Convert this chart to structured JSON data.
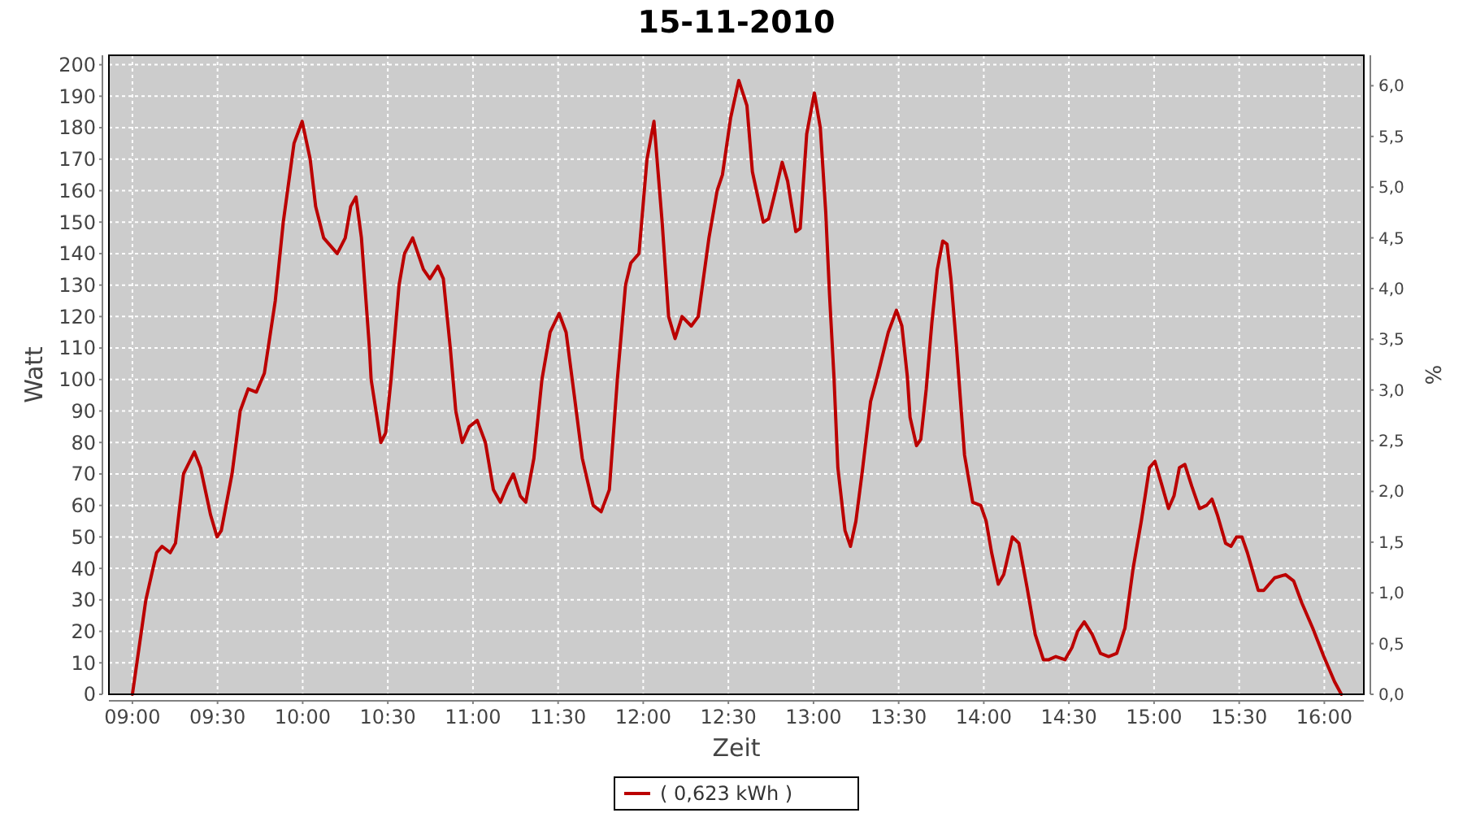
{
  "chart_data": {
    "type": "line",
    "title": "15-11-2010",
    "xlabel": "Zeit",
    "ylabel": "Watt",
    "y2label": "%",
    "xlim": [
      8.862,
      16.232
    ],
    "xticks": [
      {
        "value": 9,
        "label": "09:00"
      },
      {
        "value": 9.5,
        "label": "09:30"
      },
      {
        "value": 10,
        "label": "10:00"
      },
      {
        "value": 10.5,
        "label": "10:30"
      },
      {
        "value": 11,
        "label": "11:00"
      },
      {
        "value": 11.5,
        "label": "11:30"
      },
      {
        "value": 12,
        "label": "12:00"
      },
      {
        "value": 12.5,
        "label": "12:30"
      },
      {
        "value": 13,
        "label": "13:00"
      },
      {
        "value": 13.5,
        "label": "13:30"
      },
      {
        "value": 14,
        "label": "14:00"
      },
      {
        "value": 14.5,
        "label": "14:30"
      },
      {
        "value": 15,
        "label": "15:00"
      },
      {
        "value": 15.5,
        "label": "15:30"
      },
      {
        "value": 16,
        "label": "16:00"
      }
    ],
    "ylim": [
      0,
      203
    ],
    "yticks": [
      0,
      10,
      20,
      30,
      40,
      50,
      60,
      70,
      80,
      90,
      100,
      110,
      120,
      130,
      140,
      150,
      160,
      170,
      180,
      190,
      200
    ],
    "y2lim": [
      0,
      6.3
    ],
    "y2ticks": [
      {
        "value": 0,
        "label": "0,0"
      },
      {
        "value": 0.5,
        "label": "0,5"
      },
      {
        "value": 1,
        "label": "1,0"
      },
      {
        "value": 1.5,
        "label": "1,5"
      },
      {
        "value": 2,
        "label": "2,0"
      },
      {
        "value": 2.5,
        "label": "2,5"
      },
      {
        "value": 3,
        "label": "3,0"
      },
      {
        "value": 3.5,
        "label": "3,5"
      },
      {
        "value": 4,
        "label": "4,0"
      },
      {
        "value": 4.5,
        "label": "4,5"
      },
      {
        "value": 5,
        "label": "5,0"
      },
      {
        "value": 5.5,
        "label": "5,5"
      },
      {
        "value": 6,
        "label": "6,0"
      }
    ],
    "grid": true,
    "legend": "bottom",
    "line_style": "solid",
    "marker": "none",
    "series": [
      {
        "name": "( 0,623 kWh )",
        "color": "#bb0000",
        "x": [
          9,
          9.079,
          9.142,
          9.174,
          9.222,
          9.253,
          9.3,
          9.364,
          9.4,
          9.459,
          9.497,
          9.522,
          9.585,
          9.633,
          9.68,
          9.728,
          9.775,
          9.839,
          9.886,
          9.949,
          9.997,
          10.044,
          10.076,
          10.123,
          10.203,
          10.25,
          10.282,
          10.313,
          10.345,
          10.392,
          10.402,
          10.459,
          10.487,
          10.519,
          10.566,
          10.598,
          10.646,
          10.709,
          10.747,
          10.794,
          10.826,
          10.867,
          10.899,
          10.937,
          10.978,
          11.025,
          11.073,
          11.12,
          11.161,
          11.199,
          11.237,
          11.278,
          11.31,
          11.358,
          11.405,
          11.453,
          11.506,
          11.547,
          11.595,
          11.642,
          11.706,
          11.753,
          11.801,
          11.848,
          11.896,
          11.927,
          11.975,
          12.022,
          12.063,
          12.111,
          12.149,
          12.187,
          12.228,
          12.282,
          12.323,
          12.386,
          12.434,
          12.465,
          12.513,
          12.561,
          12.609,
          12.641,
          12.673,
          12.705,
          12.736,
          12.768,
          12.816,
          12.848,
          12.896,
          12.922,
          12.96,
          13.005,
          13.04,
          13.072,
          13.094,
          13.12,
          13.143,
          13.185,
          13.217,
          13.249,
          13.287,
          13.335,
          13.375,
          13.439,
          13.487,
          13.519,
          13.551,
          13.567,
          13.605,
          13.63,
          13.662,
          13.695,
          13.727,
          13.759,
          13.784,
          13.807,
          13.839,
          13.887,
          13.935,
          13.982,
          14.014,
          14.046,
          14.085,
          14.117,
          14.168,
          14.206,
          14.254,
          14.302,
          14.35,
          14.382,
          14.423,
          14.477,
          14.519,
          14.551,
          14.59,
          14.637,
          14.685,
          14.733,
          14.781,
          14.829,
          14.877,
          14.925,
          14.973,
          15.005,
          15.043,
          15.085,
          15.117,
          15.149,
          15.181,
          15.222,
          15.267,
          15.308,
          15.34,
          15.372,
          15.42,
          15.452,
          15.484,
          15.516,
          15.548,
          15.612,
          15.644,
          15.708,
          15.772,
          15.82,
          15.868,
          15.932,
          15.997,
          16.06,
          16.1
        ],
        "values": [
          0,
          30,
          45,
          47,
          45,
          48,
          70,
          77,
          72,
          57,
          50,
          52,
          70,
          90,
          97,
          96,
          102,
          125,
          150,
          175,
          182,
          170,
          155,
          145,
          140,
          145,
          155,
          158,
          145,
          110,
          100,
          80,
          83,
          100,
          130,
          140,
          145,
          135,
          132,
          136,
          132,
          110,
          90,
          80,
          85,
          87,
          80,
          65,
          61,
          66,
          70,
          63,
          61,
          75,
          100,
          115,
          121,
          115,
          95,
          75,
          60,
          58,
          65,
          100,
          130,
          137,
          140,
          170,
          182,
          150,
          120,
          113,
          120,
          117,
          120,
          145,
          160,
          165,
          183,
          195,
          187,
          166,
          158,
          150,
          151,
          158,
          169,
          163,
          147,
          148,
          178,
          191,
          180,
          153,
          127,
          101,
          72,
          52,
          47,
          55,
          71,
          93,
          101,
          115,
          122,
          117,
          101,
          88,
          79,
          81,
          97,
          118,
          135,
          144,
          143,
          132,
          111,
          76,
          61,
          60,
          55,
          45,
          35,
          38,
          50,
          48,
          34,
          19,
          11,
          11,
          12,
          11,
          15,
          20,
          23,
          19,
          13,
          12,
          13,
          21,
          40,
          55,
          72,
          74,
          67,
          59,
          63,
          72,
          73,
          66,
          59,
          60,
          62,
          57,
          48,
          47,
          50,
          50,
          45,
          33,
          33,
          37,
          38,
          36,
          29,
          21,
          12,
          4,
          0
        ]
      }
    ]
  }
}
